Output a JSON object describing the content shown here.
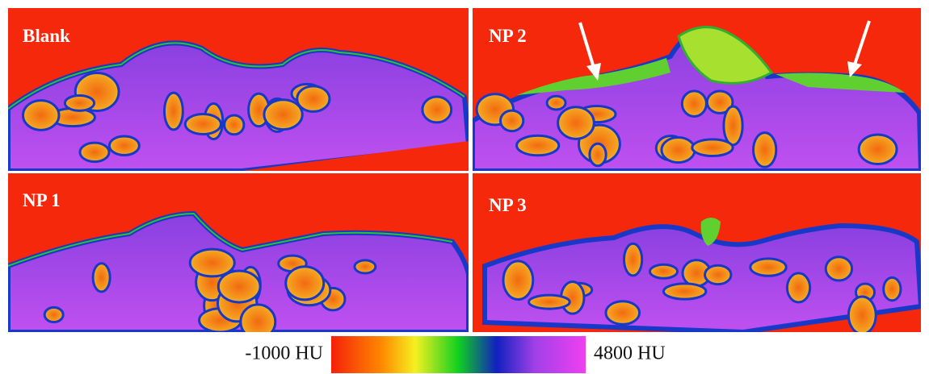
{
  "panels": [
    {
      "label": "Blank"
    },
    {
      "label": "NP 2"
    },
    {
      "label": "NP 1"
    },
    {
      "label": "NP 3"
    }
  ],
  "colorbar": {
    "min_label": "-1000 HU",
    "max_label": "4800 HU"
  }
}
